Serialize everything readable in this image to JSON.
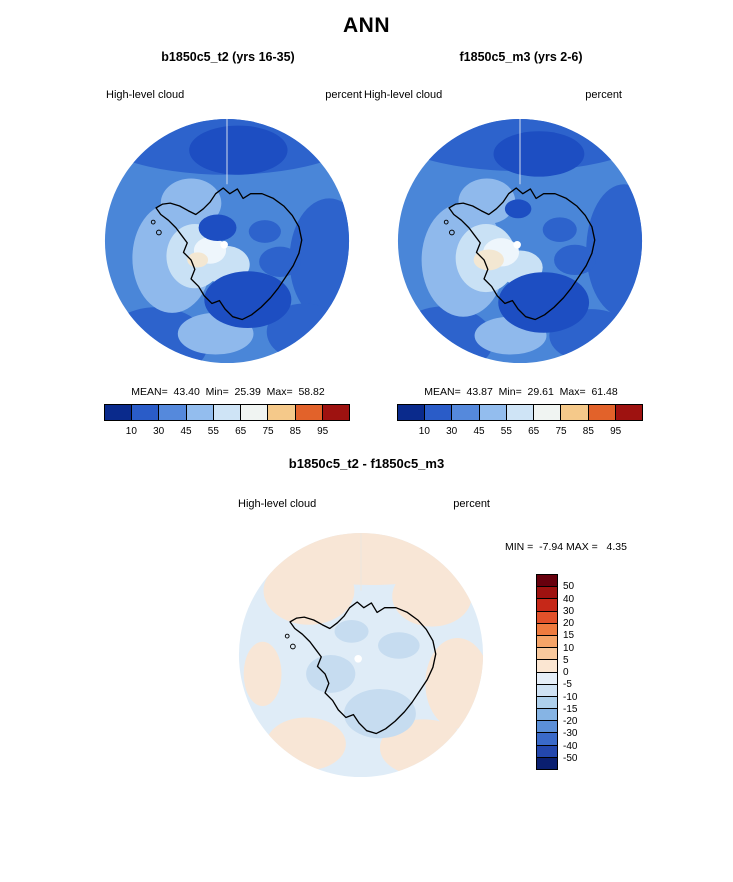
{
  "title": "ANN",
  "panels": {
    "left": {
      "header": "b1850c5_t2 (yrs 16-35)",
      "var_label": "High-level cloud",
      "units": "percent",
      "stats": "MEAN=  43.40  Min=  25.39  Max=  58.82"
    },
    "right": {
      "header": "f1850c5_m3 (yrs 2-6)",
      "var_label": "High-level cloud",
      "units": "percent",
      "stats": "MEAN=  43.87  Min=  29.61  Max=  61.48"
    }
  },
  "top_colorbar": {
    "ticks": [
      "10",
      "30",
      "45",
      "55",
      "65",
      "75",
      "85",
      "95"
    ],
    "colors": [
      "#0a2a8c",
      "#2a5cc8",
      "#5589dc",
      "#93bdee",
      "#cfe4f6",
      "#f0f4f2",
      "#f5c98a",
      "#e2622a",
      "#9e1210"
    ]
  },
  "diff": {
    "header": "b1850c5_t2 - f1850c5_m3",
    "var_label": "High-level cloud",
    "units": "percent",
    "minmax": "MIN =  -7.94 MAX =   4.35",
    "colorbar": {
      "ticks": [
        "50",
        "40",
        "30",
        "20",
        "15",
        "10",
        "5",
        "0",
        "-5",
        "-10",
        "-15",
        "-20",
        "-30",
        "-40",
        "-50"
      ],
      "colors": [
        "#67000d",
        "#9e1210",
        "#c62818",
        "#e2512a",
        "#ef7b3f",
        "#f5a468",
        "#f8c89c",
        "#fbe6d2",
        "#e5eef8",
        "#cfe2f4",
        "#aed0ec",
        "#86b4e4",
        "#5b8fd8",
        "#3a6ac9",
        "#2347ad",
        "#0a1f70"
      ]
    }
  },
  "chart_data": [
    {
      "type": "heatmap",
      "title": "b1850c5_t2 (yrs 16-35)",
      "variable": "High-level cloud",
      "units": "percent",
      "season": "ANN",
      "stats": {
        "mean": 43.4,
        "min": 25.39,
        "max": 58.82
      },
      "levels": [
        10,
        30,
        45,
        55,
        65,
        75,
        85,
        95
      ],
      "legend_position": "bottom"
    },
    {
      "type": "heatmap",
      "title": "f1850c5_m3 (yrs 2-6)",
      "variable": "High-level cloud",
      "units": "percent",
      "season": "ANN",
      "stats": {
        "mean": 43.87,
        "min": 29.61,
        "max": 61.48
      },
      "levels": [
        10,
        30,
        45,
        55,
        65,
        75,
        85,
        95
      ],
      "legend_position": "bottom"
    },
    {
      "type": "heatmap",
      "title": "b1850c5_t2 - f1850c5_m3",
      "variable": "High-level cloud",
      "units": "percent",
      "season": "ANN",
      "stats": {
        "min": -7.94,
        "max": 4.35
      },
      "levels": [
        50,
        40,
        30,
        20,
        15,
        10,
        5,
        0,
        -5,
        -10,
        -15,
        -20,
        -30,
        -40,
        -50
      ],
      "legend_position": "right"
    }
  ]
}
